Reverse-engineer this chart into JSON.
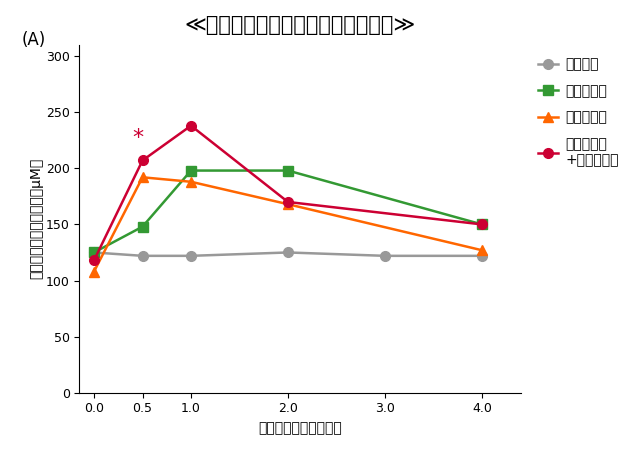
{
  "title": "≪血潏中アルギニン濃度の経時変化≫",
  "xlabel": "摂取後の時間（時間）",
  "ylabel": "血潏中アルギニン濃度（μM）",
  "panel_label": "(A)",
  "x": [
    0,
    0.5,
    1,
    2,
    3,
    4
  ],
  "series": [
    {
      "name": "プラセボ",
      "color": "#999999",
      "marker": "o",
      "values": [
        125,
        122,
        122,
        125,
        122,
        122
      ]
    },
    {
      "name": "シトルリン",
      "color": "#339933",
      "marker": "s",
      "values": [
        125,
        148,
        198,
        198,
        null,
        150
      ]
    },
    {
      "name": "アルギニン",
      "color": "#FF6600",
      "marker": "^",
      "values": [
        108,
        192,
        188,
        168,
        null,
        127
      ]
    },
    {
      "name": "アルギニン\n+シトルリン",
      "color": "#CC0033",
      "marker": "o",
      "values": [
        118,
        207,
        238,
        170,
        null,
        150
      ]
    }
  ],
  "asterisk_x": 0.5,
  "asterisk_y": 218,
  "asterisk_color": "#CC0033",
  "ylim": [
    0,
    310
  ],
  "xlim": [
    -0.15,
    4.4
  ],
  "xticks": [
    0,
    0.5,
    1,
    2,
    3,
    4
  ],
  "yticks": [
    0,
    50,
    100,
    150,
    200,
    250,
    300
  ],
  "title_fontsize": 15,
  "axis_label_fontsize": 10,
  "tick_fontsize": 9,
  "legend_fontsize": 10,
  "panel_fontsize": 12
}
